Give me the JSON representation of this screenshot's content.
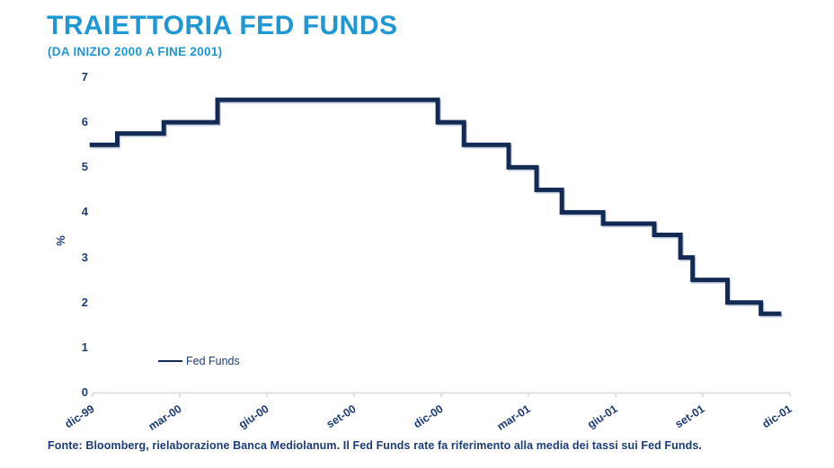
{
  "header": {
    "title": "TRAIETTORIA FED FUNDS",
    "subtitle": "(DA INIZIO 2000 A FINE 2001)"
  },
  "footer": {
    "source": "Fonte: Bloomberg, rielaborazione Banca Mediolanum. Il Fed Funds rate fa riferimento alla media dei tassi sui Fed Funds."
  },
  "legend": {
    "label": "Fed Funds"
  },
  "colors": {
    "accent_blue": "#1e97d4",
    "text_navy": "#1d3c78",
    "line_navy": "#132a55",
    "line_shadow": "#c9d3e3",
    "axis_gray": "#d9d9d9"
  },
  "chart_data": {
    "type": "line",
    "style": "step",
    "title": "TRAIETTORIA FED FUNDS",
    "subtitle": "(DA INIZIO 2000 A FINE 2001)",
    "series_name": "Fed Funds",
    "xlabel": "",
    "ylabel": "%",
    "ylim": [
      0,
      7
    ],
    "y_ticks": [
      0,
      1,
      2,
      3,
      4,
      5,
      6,
      7
    ],
    "x_tick_labels": [
      "dic-99",
      "mar-00",
      "giu-00",
      "set-00",
      "dic-00",
      "mar-01",
      "giu-01",
      "set-01",
      "dic-01"
    ],
    "x_tick_months": [
      0,
      3,
      6,
      9,
      12,
      15,
      18,
      21,
      24
    ],
    "x_months_total": 24,
    "grid": false,
    "legend_position": "bottom-left-inside",
    "segments_note": "Fed Funds rate (%) step segments; m0/m1 are months elapsed since dic-99 (0 = dic-99, 24 = dic-01)",
    "segments": [
      {
        "value": 5.5,
        "m0": -0.1,
        "m1": 0.85
      },
      {
        "value": 5.75,
        "m0": 0.85,
        "m1": 2.45
      },
      {
        "value": 6.0,
        "m0": 2.45,
        "m1": 4.3
      },
      {
        "value": 6.5,
        "m0": 4.3,
        "m1": 11.88
      },
      {
        "value": 6.0,
        "m0": 11.88,
        "m1": 12.78
      },
      {
        "value": 5.5,
        "m0": 12.78,
        "m1": 14.32
      },
      {
        "value": 5.0,
        "m0": 14.32,
        "m1": 15.28
      },
      {
        "value": 4.5,
        "m0": 15.28,
        "m1": 16.15
      },
      {
        "value": 4.0,
        "m0": 16.15,
        "m1": 17.57
      },
      {
        "value": 3.75,
        "m0": 17.57,
        "m1": 19.33
      },
      {
        "value": 3.5,
        "m0": 19.33,
        "m1": 20.23
      },
      {
        "value": 3.0,
        "m0": 20.23,
        "m1": 20.65
      },
      {
        "value": 2.5,
        "m0": 20.65,
        "m1": 21.85
      },
      {
        "value": 2.0,
        "m0": 21.85,
        "m1": 23.0
      },
      {
        "value": 1.75,
        "m0": 23.0,
        "m1": 23.7
      }
    ]
  }
}
